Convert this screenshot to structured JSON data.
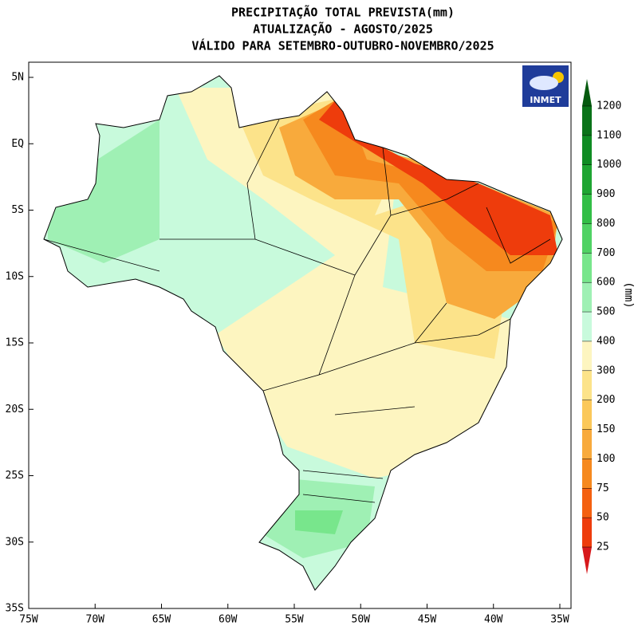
{
  "title_lines": [
    "PRECIPITAÇÃO TOTAL PREVISTA(mm)",
    "ATUALIZAÇÃO - AGOSTO/2025",
    "VÁLIDO PARA SETEMBRO-OUTUBRO-NOVEMBRO/2025"
  ],
  "logo": "INMET",
  "xticks": [
    {
      "value": -75,
      "label": "75W"
    },
    {
      "value": -70,
      "label": "70W"
    },
    {
      "value": -65,
      "label": "65W"
    },
    {
      "value": -60,
      "label": "60W"
    },
    {
      "value": -55,
      "label": "55W"
    },
    {
      "value": -50,
      "label": "50W"
    },
    {
      "value": -45,
      "label": "45W"
    },
    {
      "value": -40,
      "label": "40W"
    },
    {
      "value": -35,
      "label": "35W"
    }
  ],
  "yticks": [
    {
      "value": 5,
      "label": "5N"
    },
    {
      "value": 0,
      "label": "EQ"
    },
    {
      "value": -5,
      "label": "5S"
    },
    {
      "value": -10,
      "label": "10S"
    },
    {
      "value": -15,
      "label": "15S"
    },
    {
      "value": -20,
      "label": "20S"
    },
    {
      "value": -25,
      "label": "25S"
    },
    {
      "value": -30,
      "label": "30S"
    },
    {
      "value": -35,
      "label": "35S"
    }
  ],
  "colorbar": {
    "label": "(mm)",
    "levels": [
      25,
      50,
      75,
      100,
      150,
      200,
      300,
      400,
      500,
      600,
      700,
      800,
      900,
      1000,
      1100,
      1200
    ],
    "colors": [
      "#d7191c",
      "#ee3c0c",
      "#f46010",
      "#f6891e",
      "#f8aa3c",
      "#fbc85a",
      "#fce38a",
      "#fdf5c0",
      "#c8fadc",
      "#9ff0b4",
      "#78e68c",
      "#50d264",
      "#32be46",
      "#1ea532",
      "#0f8c23",
      "#0a7319",
      "#055a0f"
    ]
  }
}
